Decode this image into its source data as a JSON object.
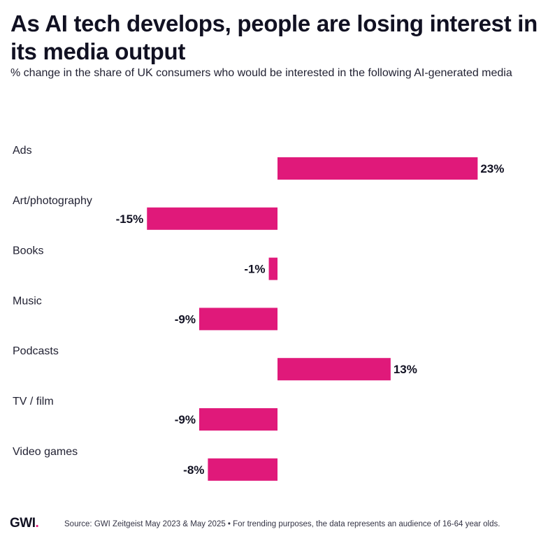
{
  "title": "As AI tech develops, people are losing interest in its media output",
  "subtitle": "% change in the share of UK consumers who would be interested in the following AI-generated media",
  "chart_data": {
    "type": "bar",
    "orientation": "horizontal",
    "categories": [
      "Ads",
      "Art/photography",
      "Books",
      "Music",
      "Podcasts",
      "TV / film",
      "Video games"
    ],
    "values": [
      23,
      -15,
      -1,
      -9,
      13,
      -9,
      -8
    ],
    "value_labels": [
      "23%",
      "-15%",
      "-1%",
      "-9%",
      "13%",
      "-9%",
      "-8%"
    ],
    "unit": "%",
    "xlim": [
      -32,
      32
    ],
    "bar_color": "#e0197a"
  },
  "footer": {
    "logo": "GWI",
    "logo_dot": ".",
    "source": "Source: GWI Zeitgeist May 2023 & May 2025 • For trending purposes, the data represents an audience of 16-64 year olds."
  }
}
